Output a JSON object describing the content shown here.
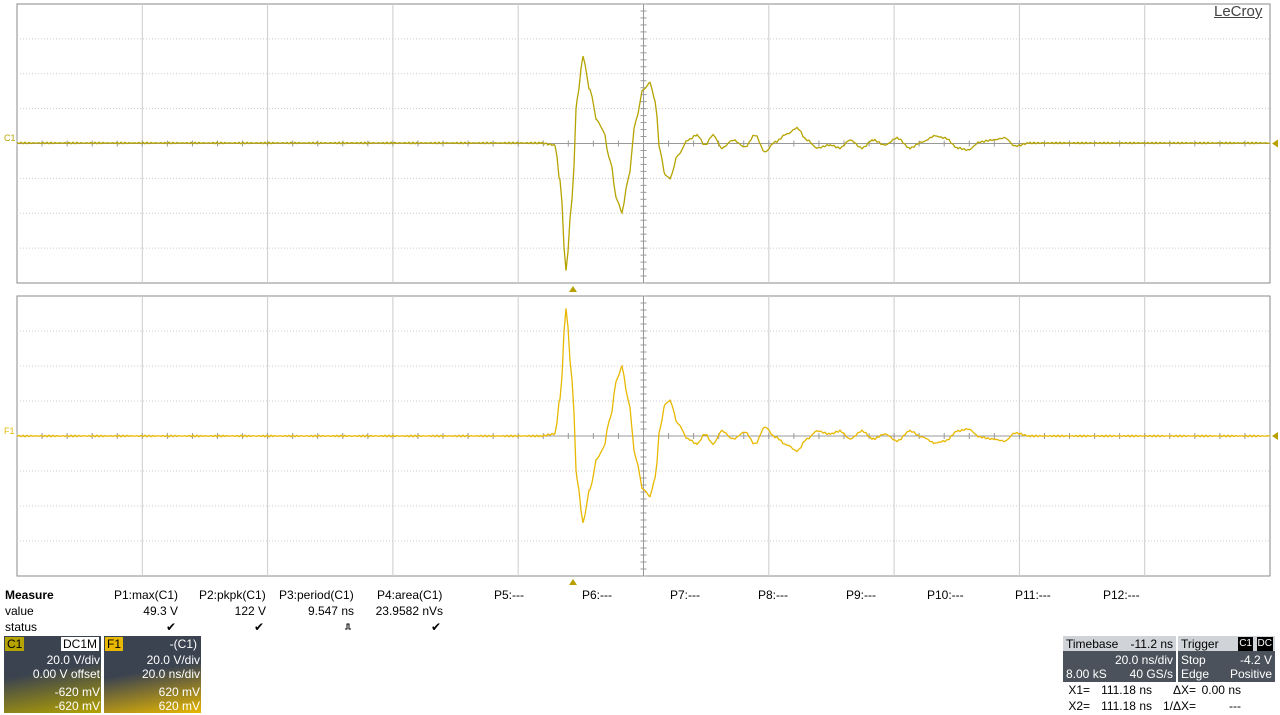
{
  "brand": "LeCroy",
  "traces": [
    {
      "label": "C1"
    },
    {
      "label": "F1"
    }
  ],
  "measure": {
    "title": "Measure",
    "row_labels": [
      "value",
      "status"
    ],
    "params": [
      {
        "name": "P1:max(C1)",
        "value": "49.3 V",
        "status": "✔"
      },
      {
        "name": "P2:pkpk(C1)",
        "value": "122 V",
        "status": "✔"
      },
      {
        "name": "P3:period(C1)",
        "value": "9.547 ns"
      },
      {
        "name": "P4:area(C1)",
        "value": "23.9582 nVs",
        "status": "✔"
      },
      {
        "name": "P5:---"
      },
      {
        "name": "P6:---"
      },
      {
        "name": "P7:---"
      },
      {
        "name": "P8:---"
      },
      {
        "name": "P9:---"
      },
      {
        "name": "P10:---"
      },
      {
        "name": "P11:---"
      },
      {
        "name": "P12:---"
      }
    ]
  },
  "channels": [
    {
      "name": "C1",
      "tag": "DC1M",
      "lines": [
        "20.0 V/div",
        "0.00 V offset"
      ],
      "cursors": [
        "-620 mV",
        "-620 mV"
      ]
    },
    {
      "name": "F1",
      "tag": "-(C1)",
      "lines": [
        "20.0 V/div",
        "20.0 ns/div"
      ],
      "cursors": [
        "620 mV",
        "620 mV"
      ]
    }
  ],
  "timebase": {
    "label": "Timebase",
    "value": "-11.2 ns",
    "per_div": "20.0 ns/div",
    "samples": "8.00 kS",
    "rate": "40 GS/s"
  },
  "trigger": {
    "label": "Trigger",
    "source": "C1",
    "coupling": "DC",
    "mode": "Stop",
    "level": "-4.2 V",
    "type": "Edge",
    "slope": "Positive"
  },
  "cursors": [
    [
      "X1=",
      "111.18 ns",
      "ΔX=",
      "0.00 ns"
    ],
    [
      "X2=",
      "111.18 ns",
      "1/ΔX=",
      "---"
    ]
  ]
}
